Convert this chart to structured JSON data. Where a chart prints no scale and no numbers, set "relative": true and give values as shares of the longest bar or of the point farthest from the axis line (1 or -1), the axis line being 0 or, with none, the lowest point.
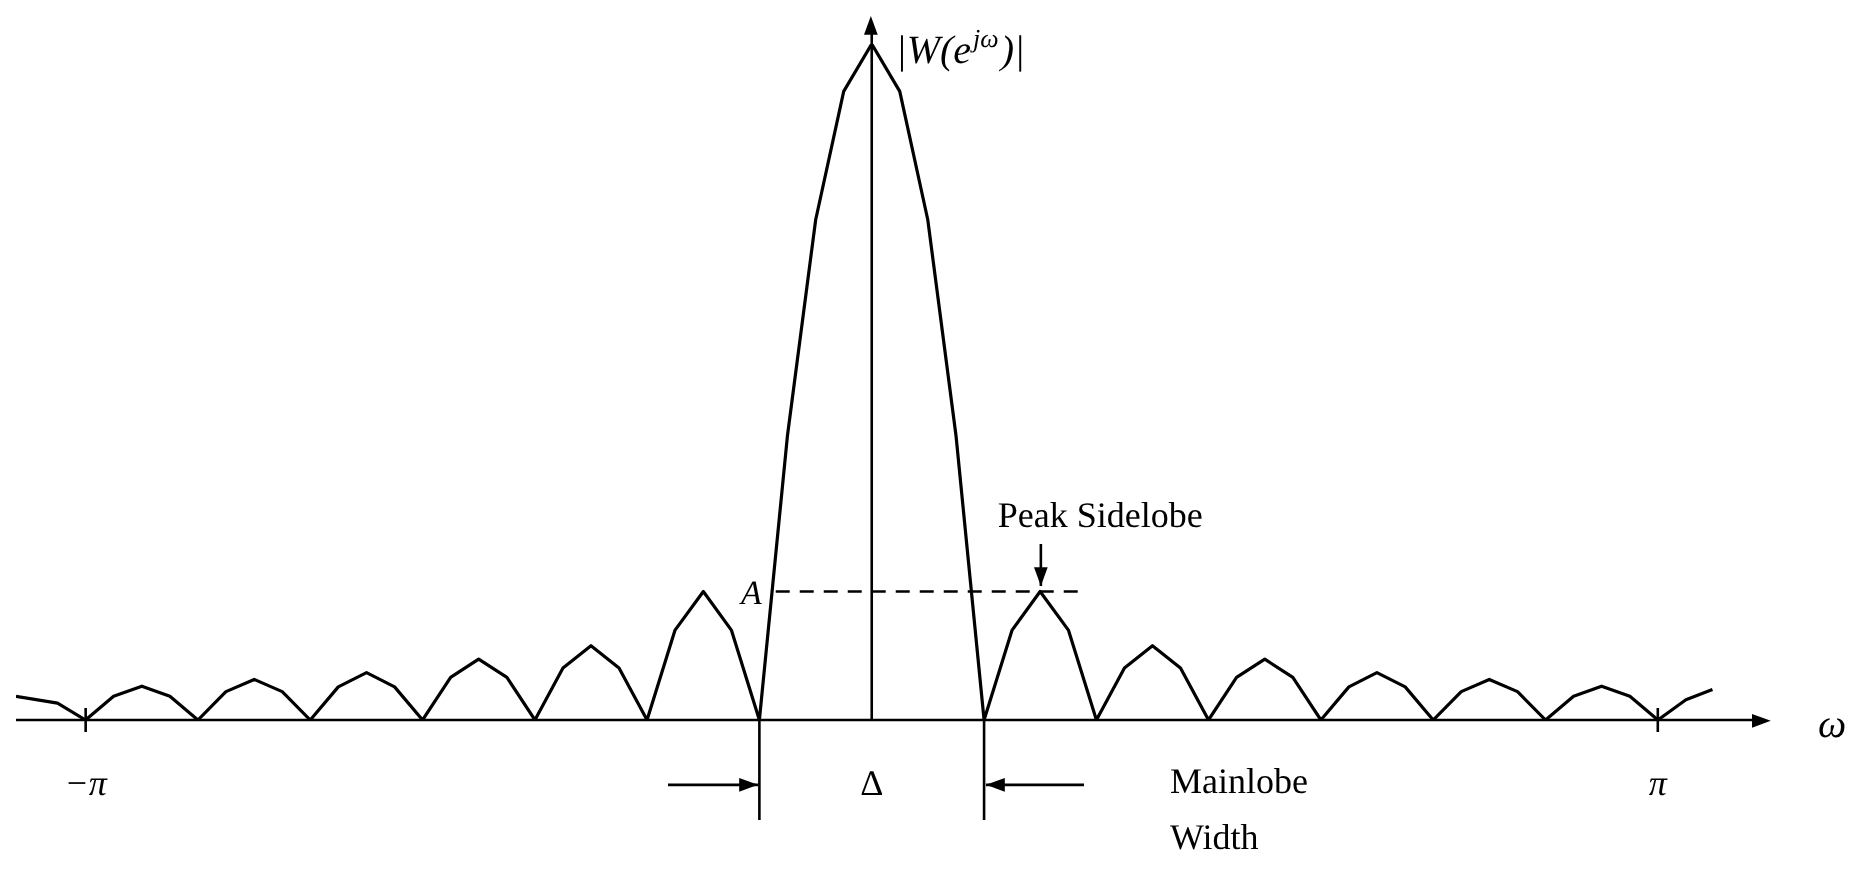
{
  "chart_data": {
    "type": "line",
    "relative": true,
    "ylabel": "|W(e$^{jω}$)|",
    "xlabel": "ω",
    "x": [
      -3.42,
      -3.254,
      -3.142,
      -3.03,
      -2.917,
      -2.805,
      -2.693,
      -2.581,
      -2.468,
      -2.356,
      -2.244,
      -2.132,
      -2.019,
      -1.907,
      -1.795,
      -1.683,
      -1.571,
      -1.458,
      -1.346,
      -1.234,
      -1.122,
      -1.01,
      -0.898,
      -0.786,
      -0.673,
      -0.561,
      -0.449,
      -0.337,
      -0.224,
      -0.112,
      0,
      0.112,
      0.224,
      0.337,
      0.449,
      0.561,
      0.673,
      0.786,
      0.898,
      1.01,
      1.122,
      1.234,
      1.346,
      1.458,
      1.571,
      1.683,
      1.795,
      1.907,
      2.019,
      2.132,
      2.244,
      2.356,
      2.468,
      2.581,
      2.693,
      2.805,
      2.917,
      3.03,
      3.142,
      3.254,
      3.36
    ],
    "series": [
      {
        "color": "#000000",
        "values": [
          0.035,
          0.025,
          0,
          0.035,
          0.05,
          0.035,
          0,
          0.042,
          0.06,
          0.042,
          0,
          0.049,
          0.07,
          0.049,
          0,
          0.063,
          0.09,
          0.063,
          0,
          0.077,
          0.11,
          0.077,
          0,
          0.133,
          0.19,
          0.133,
          0,
          0.42,
          0.74,
          0.93,
          1,
          0.93,
          0.74,
          0.42,
          0,
          0.133,
          0.19,
          0.133,
          0,
          0.077,
          0.11,
          0.077,
          0,
          0.063,
          0.09,
          0.063,
          0,
          0.049,
          0.07,
          0.049,
          0,
          0.042,
          0.06,
          0.042,
          0,
          0.035,
          0.05,
          0.035,
          0,
          0.03,
          0.045
        ]
      }
    ],
    "xlim": [
      -3.42,
      3.59
    ],
    "xticks": [
      {
        "value": -3.1416,
        "label": "−π"
      },
      {
        "value": 3.1416,
        "label": "π"
      }
    ],
    "ref_lines": [
      {
        "axis": "y",
        "value": 0.19,
        "label": "A",
        "line_style": "dashed"
      }
    ],
    "annotations": [
      {
        "text": "Peak Sidelobe",
        "x": 0.673,
        "y": 0.19
      },
      "Δ",
      "Mainlobe Width"
    ]
  }
}
